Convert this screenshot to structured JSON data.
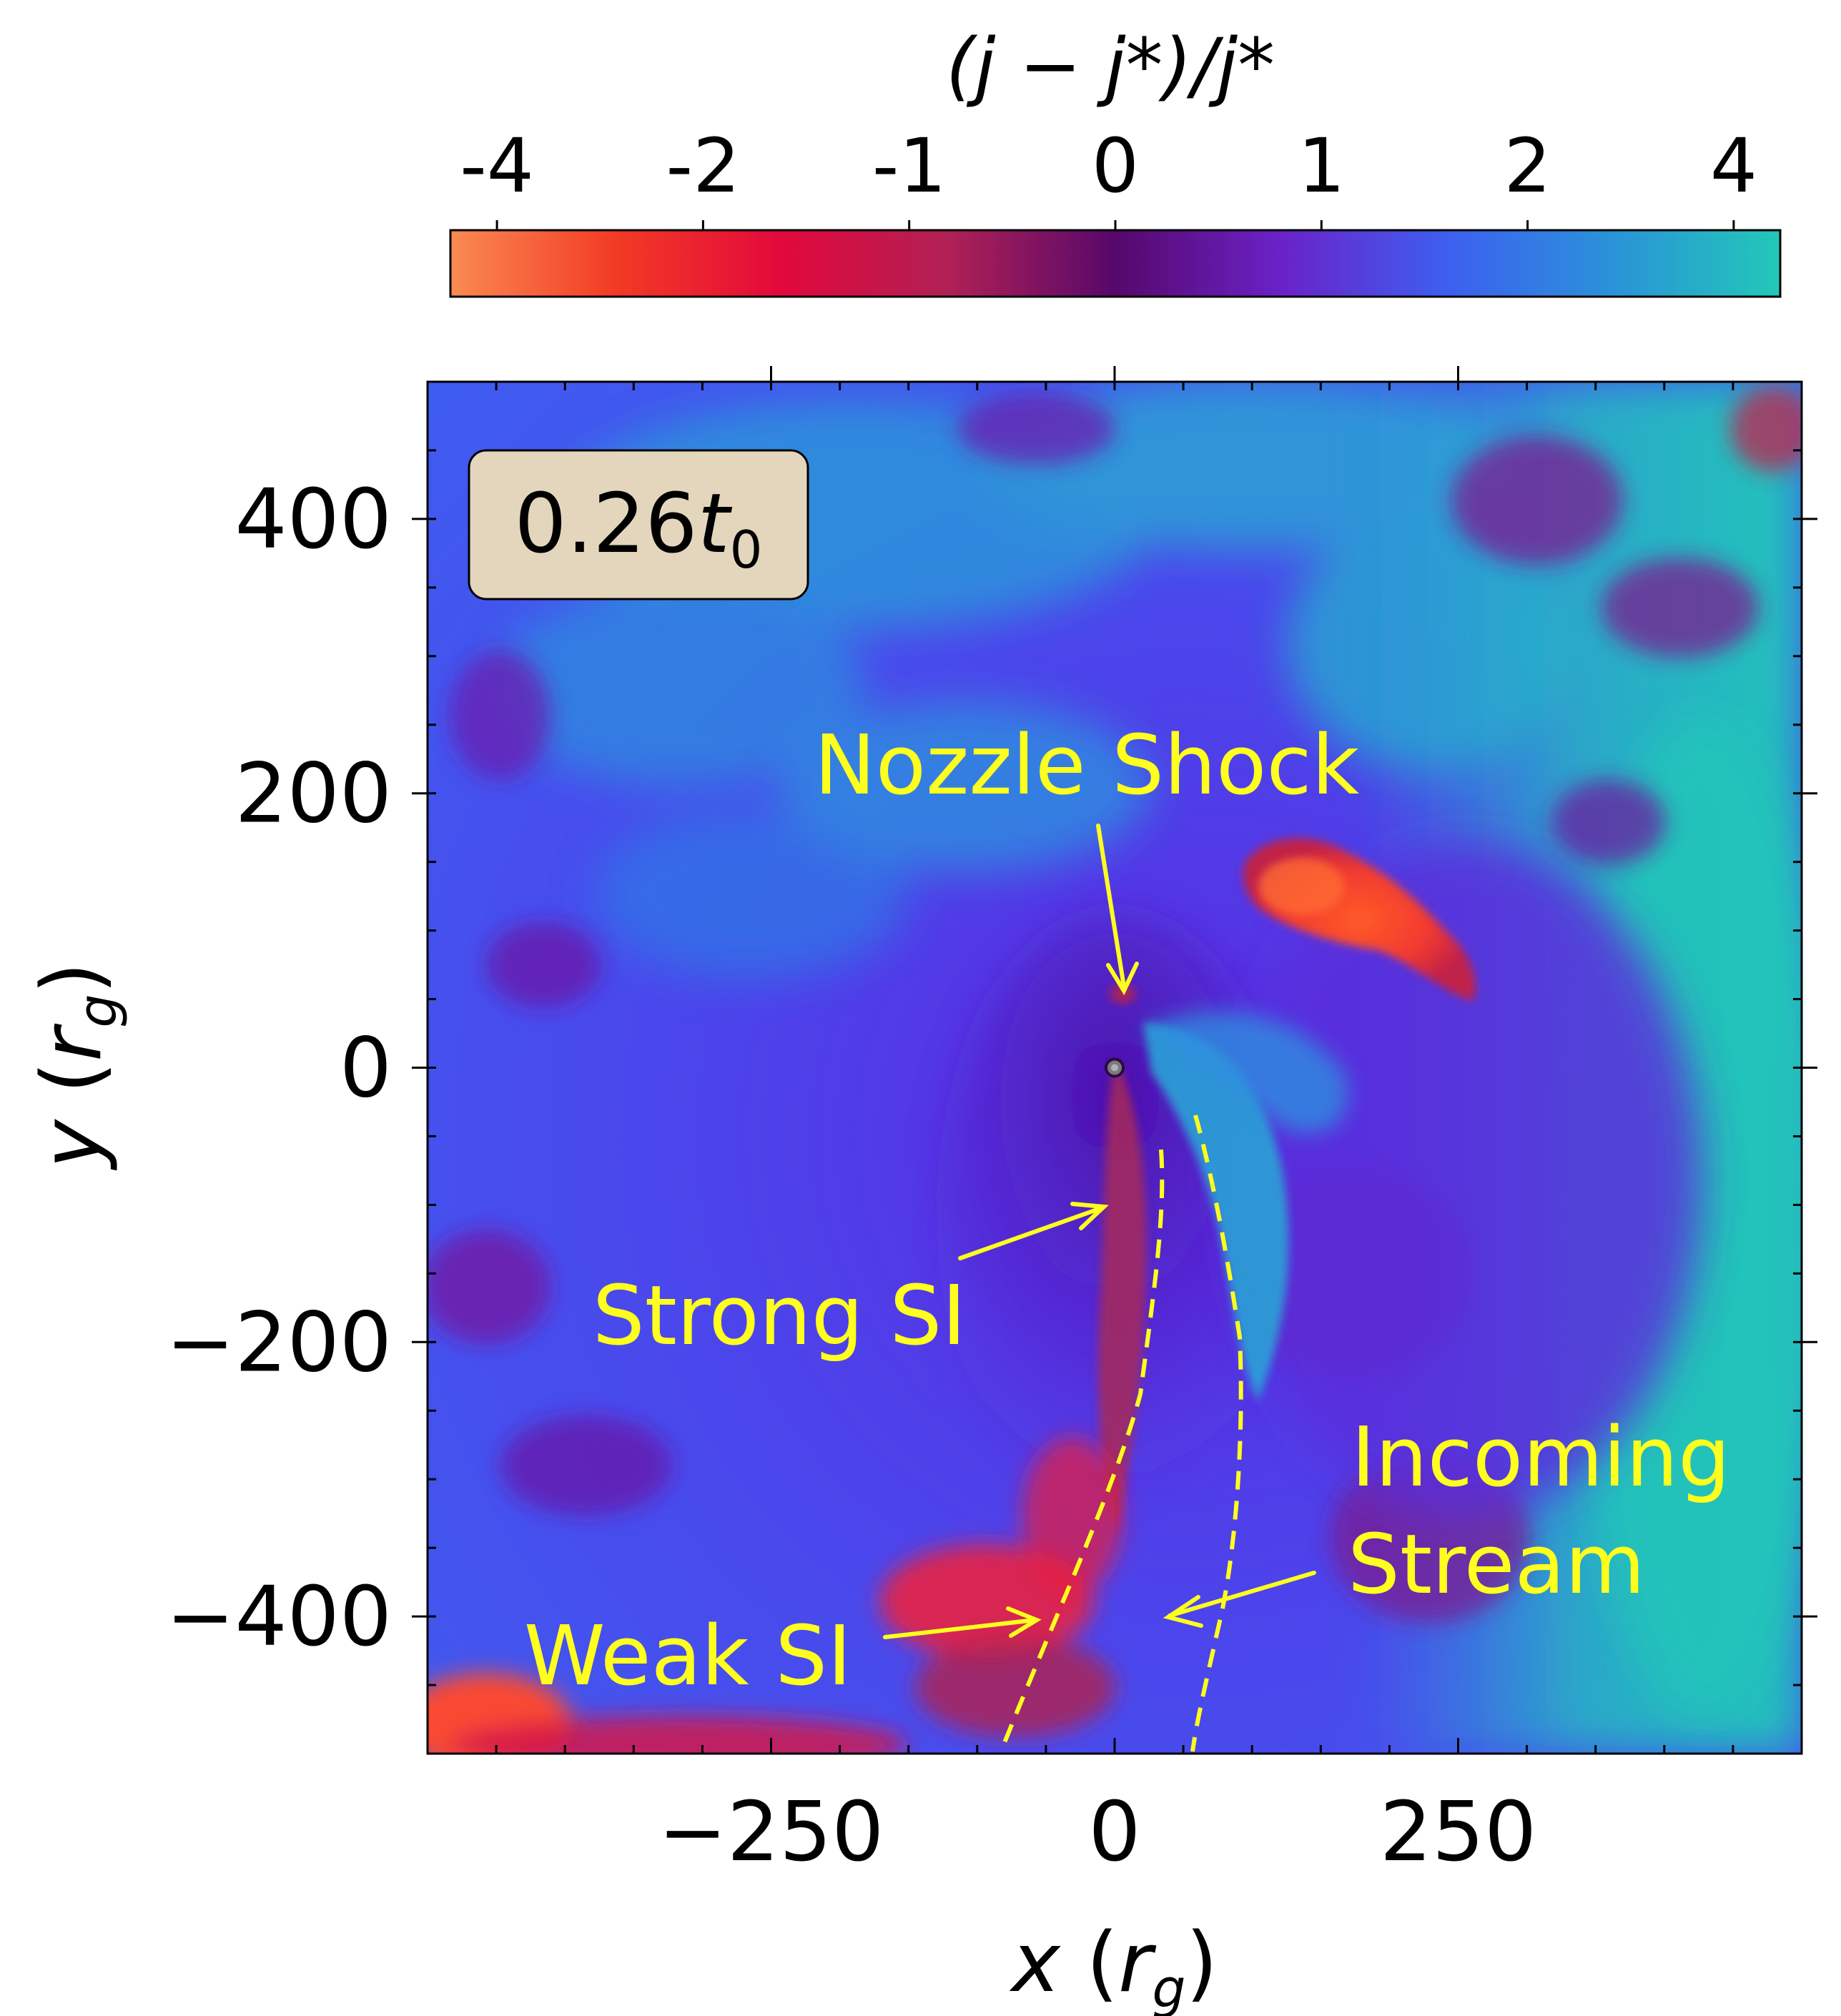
{
  "chart_data": {
    "type": "heatmap",
    "title": "",
    "xlabel": "x (r_g)",
    "ylabel": "y (r_g)",
    "xlim": [
      -500,
      500
    ],
    "ylim": [
      -500,
      500
    ],
    "x_ticks": [
      -250,
      0,
      250
    ],
    "y_ticks": [
      -400,
      -200,
      0,
      200,
      400
    ],
    "x_tick_labels": [
      "−250",
      "0",
      "250"
    ],
    "y_tick_labels": [
      "−400",
      "−200",
      "0",
      "200",
      "400"
    ],
    "time_label": "0.26",
    "time_symbol": "t",
    "time_subscript": "0",
    "colorbar": {
      "label": "(j − j*)/j*",
      "tick_labels": [
        "-4",
        "-2",
        "-1",
        "0",
        "1",
        "2",
        "4"
      ],
      "tick_values": [
        -4,
        -2,
        -1,
        0,
        1,
        2,
        4
      ],
      "range": [
        -4.25,
        4.25
      ],
      "colors": [
        "#fa8a52",
        "#f23a24",
        "#e2083c",
        "#b02055",
        "#56086b",
        "#6a22c8",
        "#3d5ff0",
        "#2a93d8",
        "#22c8b8"
      ]
    },
    "annotations": [
      {
        "text": "Nozzle Shock",
        "target": [
          10,
          55
        ]
      },
      {
        "text": "Strong SI",
        "target": [
          -5,
          -100
        ]
      },
      {
        "text": "Weak SI",
        "target": [
          -55,
          -400
        ]
      },
      {
        "text": "Incoming",
        "text2": "Stream",
        "target": [
          35,
          -400
        ]
      }
    ],
    "black_hole": {
      "x": 0,
      "y": 0
    },
    "annotation_color": "#ffff1e"
  }
}
